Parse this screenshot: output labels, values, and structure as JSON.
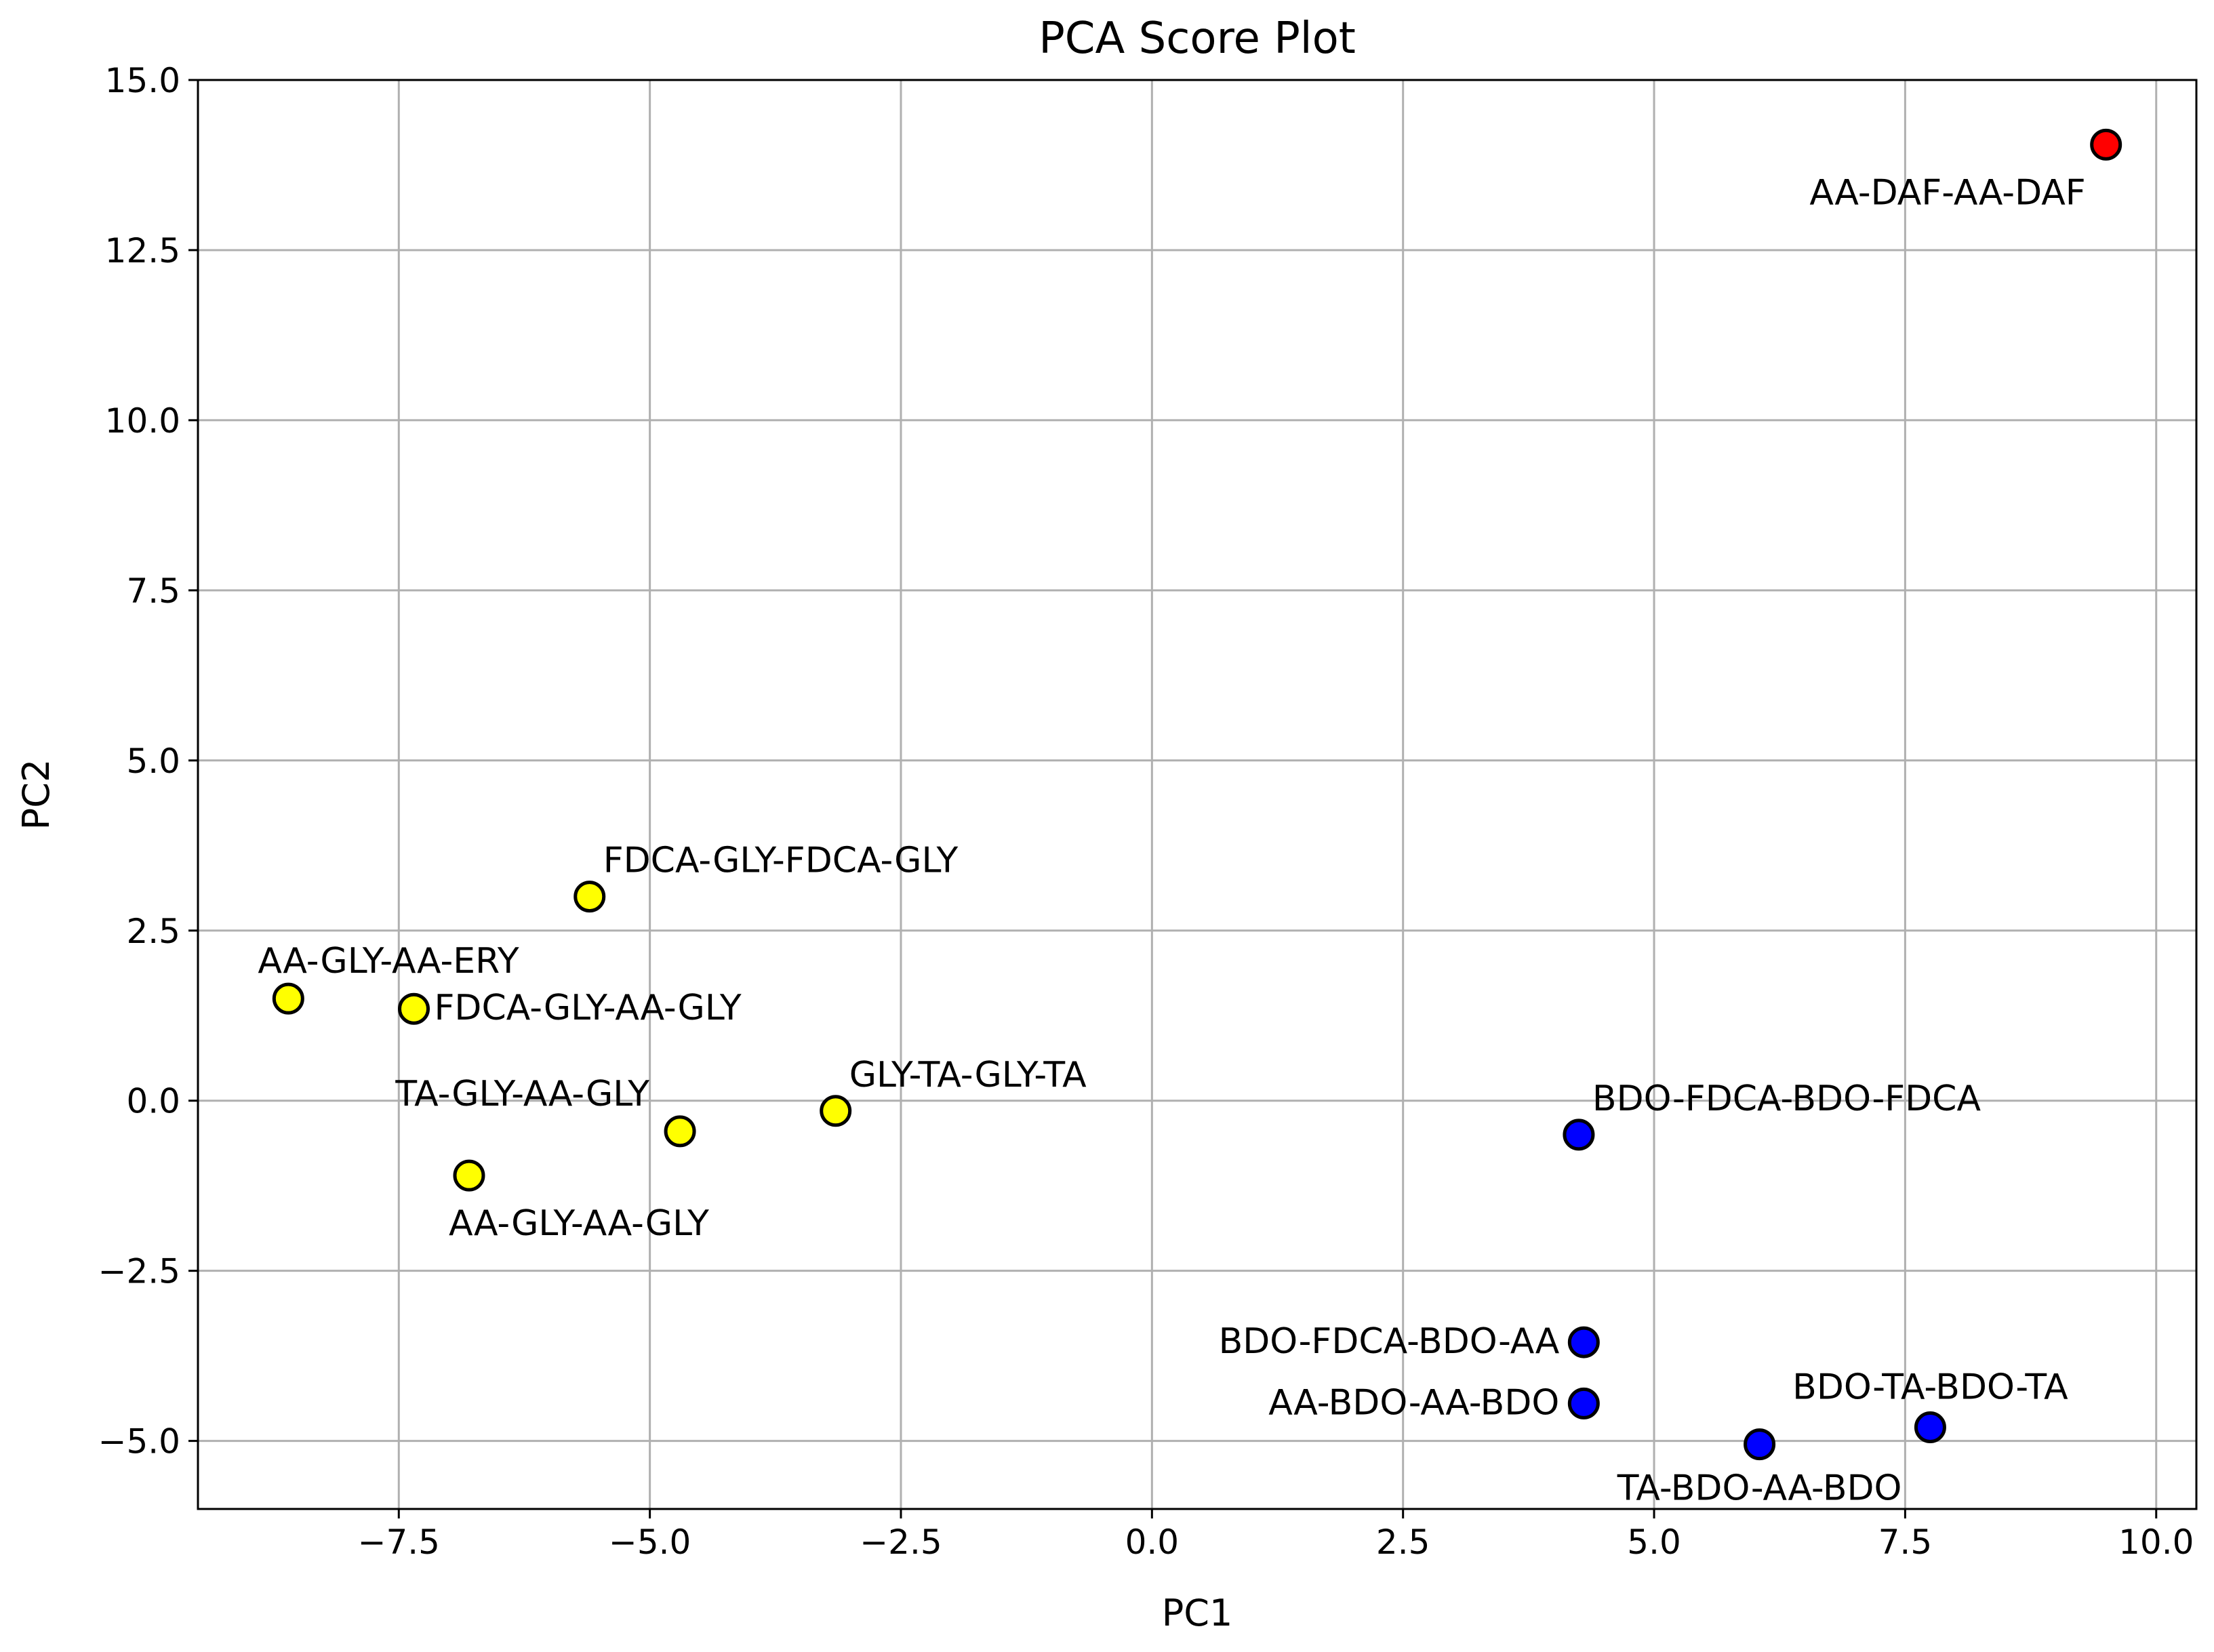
{
  "chart_data": {
    "type": "scatter",
    "title": "PCA Score Plot",
    "xlabel": "PC1",
    "ylabel": "PC2",
    "xlim": [
      -9.5,
      10.4
    ],
    "ylim": [
      -6.0,
      15.0
    ],
    "grid": true,
    "xticks": [
      -7.5,
      -5.0,
      -2.5,
      0.0,
      2.5,
      5.0,
      7.5,
      10.0
    ],
    "xtick_labels": [
      "−7.5",
      "−5.0",
      "−2.5",
      "0.0",
      "2.5",
      "5.0",
      "7.5",
      "10.0"
    ],
    "yticks": [
      -5.0,
      -2.5,
      0.0,
      2.5,
      5.0,
      7.5,
      10.0,
      12.5,
      15.0
    ],
    "ytick_labels": [
      "−5.0",
      "−2.5",
      "0.0",
      "2.5",
      "5.0",
      "7.5",
      "10.0",
      "12.5",
      "15.0"
    ],
    "points": [
      {
        "label": "AA-DAF-AA-DAF",
        "x": 9.5,
        "y": 14.05,
        "color": "#ff0000",
        "label_anchor": "end",
        "label_pos": "below-left"
      },
      {
        "label": "FDCA-GLY-FDCA-GLY",
        "x": -5.6,
        "y": 3.0,
        "color": "#ffff00",
        "label_anchor": "start",
        "label_pos": "above-right"
      },
      {
        "label": "AA-GLY-AA-ERY",
        "x": -8.6,
        "y": 1.5,
        "color": "#ffff00",
        "label_anchor": "start",
        "label_pos": "above-left"
      },
      {
        "label": "FDCA-GLY-AA-GLY",
        "x": -7.35,
        "y": 1.35,
        "color": "#ffff00",
        "label_anchor": "start",
        "label_pos": "right"
      },
      {
        "label": "TA-GLY-AA-GLY",
        "x": -4.7,
        "y": -0.45,
        "color": "#ffff00",
        "label_anchor": "end",
        "label_pos": "above-left"
      },
      {
        "label": "GLY-TA-GLY-TA",
        "x": -3.15,
        "y": -0.15,
        "color": "#ffff00",
        "label_anchor": "start",
        "label_pos": "above-right"
      },
      {
        "label": "AA-GLY-AA-GLY",
        "x": -6.8,
        "y": -1.1,
        "color": "#ffff00",
        "label_anchor": "start",
        "label_pos": "below-left"
      },
      {
        "label": "BDO-FDCA-BDO-FDCA",
        "x": 4.25,
        "y": -0.5,
        "color": "#0000ff",
        "label_anchor": "start",
        "label_pos": "above-right"
      },
      {
        "label": "BDO-FDCA-BDO-AA",
        "x": 4.3,
        "y": -3.55,
        "color": "#0000ff",
        "label_anchor": "end",
        "label_pos": "left"
      },
      {
        "label": "AA-BDO-AA-BDO",
        "x": 4.3,
        "y": -4.45,
        "color": "#0000ff",
        "label_anchor": "end",
        "label_pos": "left"
      },
      {
        "label": "TA-BDO-AA-BDO",
        "x": 6.05,
        "y": -5.05,
        "color": "#0000ff",
        "label_anchor": "middle",
        "label_pos": "below"
      },
      {
        "label": "BDO-TA-BDO-TA",
        "x": 7.75,
        "y": -4.8,
        "color": "#0000ff",
        "label_anchor": "middle",
        "label_pos": "above"
      }
    ]
  }
}
